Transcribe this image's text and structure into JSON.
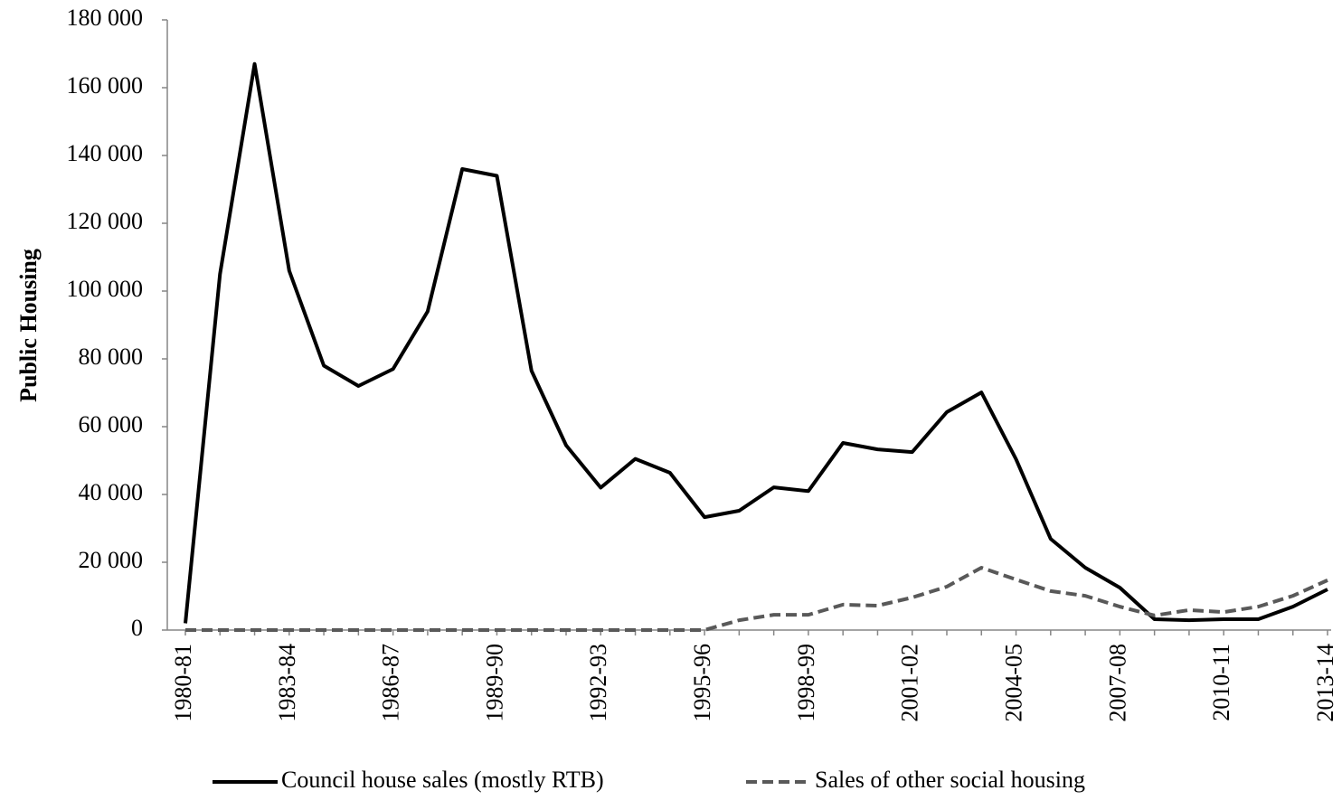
{
  "chart_data": {
    "type": "line",
    "y_label": "Public Housing",
    "categories": [
      "1980-81",
      null,
      null,
      "1983-84",
      null,
      null,
      "1986-87",
      null,
      null,
      "1989-90",
      null,
      null,
      "1992-93",
      null,
      null,
      "1995-96",
      null,
      null,
      "1998-99",
      null,
      null,
      "2001-02",
      null,
      null,
      "2004-05",
      null,
      null,
      "2007-08",
      null,
      null,
      "2010-11",
      null,
      null,
      "2013-14"
    ],
    "series": [
      {
        "name": "Council house sales (mostly RTB)",
        "color": "#000000",
        "dash": "solid",
        "values": [
          2000,
          105000,
          167000,
          106000,
          78000,
          72000,
          77000,
          94000,
          136000,
          134000,
          76500,
          54500,
          42000,
          50500,
          46400,
          33300,
          35200,
          42100,
          41000,
          55200,
          53300,
          52500,
          64300,
          70100,
          50400,
          26900,
          18400,
          12500,
          3200,
          2900,
          3200,
          3200,
          6900,
          12000
        ]
      },
      {
        "name": "Sales of other social housing",
        "color": "#595959",
        "dash": "dashed",
        "values": [
          0,
          0,
          0,
          0,
          0,
          0,
          0,
          0,
          0,
          0,
          0,
          0,
          0,
          0,
          0,
          0,
          2900,
          4500,
          4500,
          7500,
          7200,
          9600,
          12800,
          18400,
          14900,
          11500,
          10100,
          6900,
          4300,
          5900,
          5300,
          6900,
          10100,
          14700
        ]
      }
    ],
    "ylim": [
      0,
      180000
    ],
    "yticks": [
      0,
      {
        "value": 20000,
        "label": "20 000"
      },
      {
        "value": 40000,
        "label": "40 000"
      },
      {
        "value": 60000,
        "label": "60 000"
      },
      {
        "value": 80000,
        "label": "80 000"
      },
      {
        "value": 100000,
        "label": "100 000"
      },
      {
        "value": 120000,
        "label": "120 000"
      },
      {
        "value": 140000,
        "label": "140 000"
      },
      {
        "value": 160000,
        "label": "160 000"
      },
      {
        "value": 180000,
        "label": "180 000"
      }
    ],
    "grid": false,
    "legend": "bottom"
  }
}
